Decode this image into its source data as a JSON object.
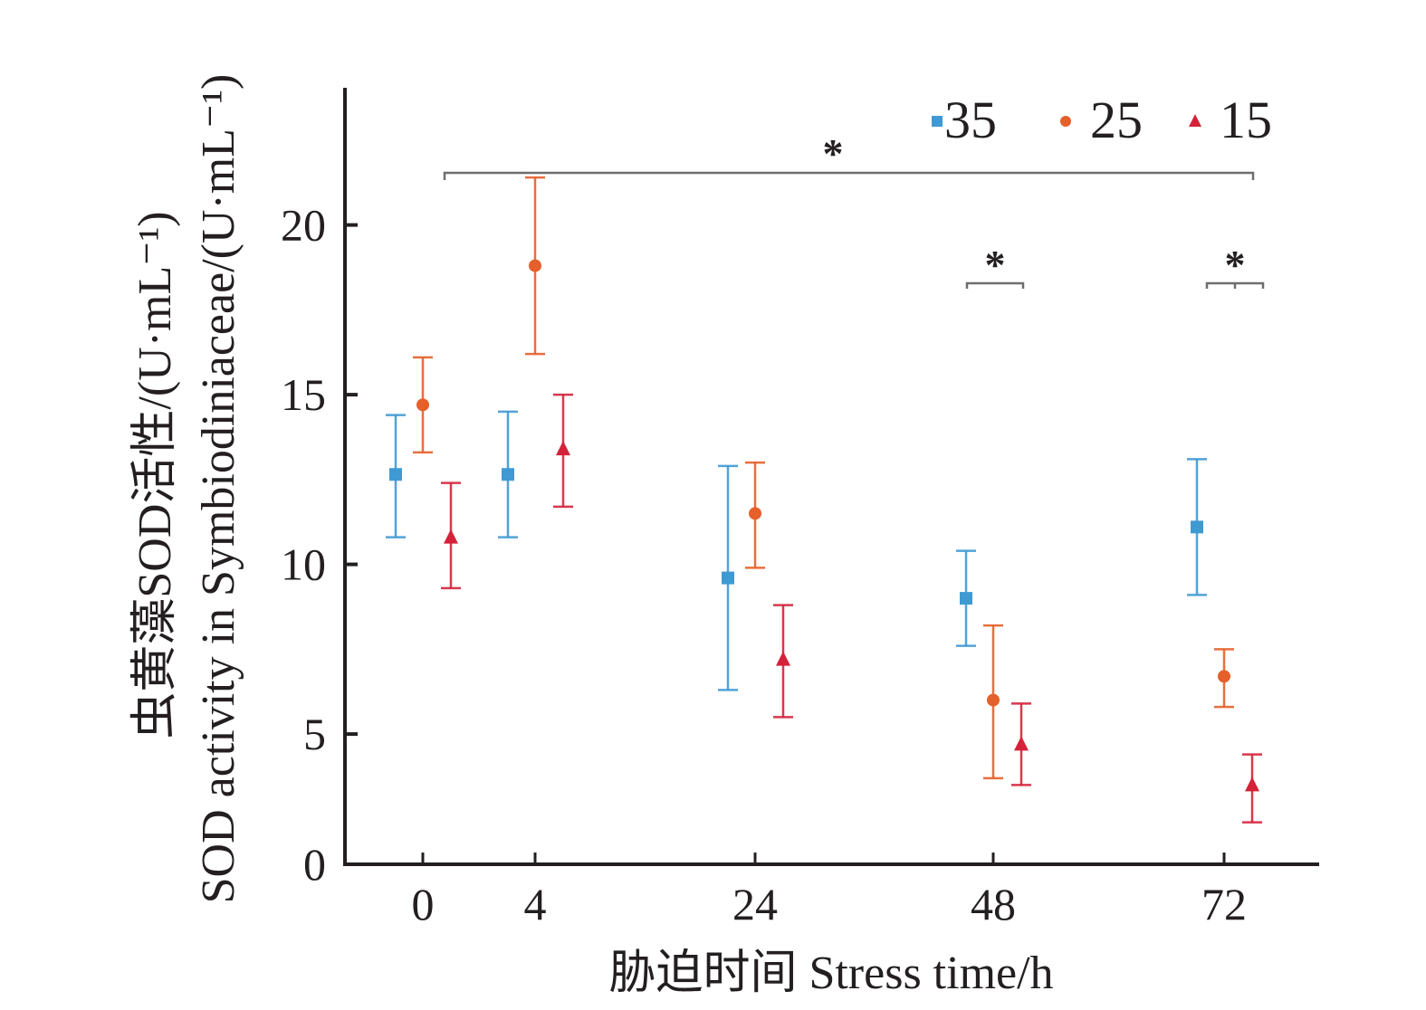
{
  "chart_data": {
    "type": "scatter",
    "subtype": "errorbar",
    "title": "",
    "xlabel": "胁迫时间 Stress time/h",
    "ylabel_line1": "虫黄藻SOD活性/(U·mL⁻¹)",
    "ylabel_line2": "SOD activity in Symbiodiniaceae/(U·mL⁻¹)",
    "categories": [
      "0",
      "4",
      "24",
      "48",
      "72"
    ],
    "y_ticks": [
      "0",
      "5",
      "10",
      "15",
      "20"
    ],
    "ylim": [
      1.1,
      23
    ],
    "grid": false,
    "legend_position": "top-right",
    "series": [
      {
        "name": "35",
        "marker": "square",
        "color": "#3f9ad3",
        "values": [
          12.65,
          12.65,
          9.6,
          9.0,
          11.1
        ],
        "upper": [
          14.4,
          14.5,
          12.9,
          10.4,
          13.1
        ],
        "lower": [
          10.8,
          10.8,
          6.3,
          7.6,
          9.1
        ]
      },
      {
        "name": "25",
        "marker": "circle",
        "color": "#e5602a",
        "values": [
          14.7,
          18.8,
          11.5,
          6.0,
          6.7
        ],
        "upper": [
          16.1,
          21.4,
          13.0,
          8.2,
          7.5
        ],
        "lower": [
          13.3,
          16.2,
          9.9,
          3.7,
          5.8
        ]
      },
      {
        "name": "15",
        "marker": "triangle",
        "color": "#d42339",
        "values": [
          10.8,
          13.4,
          7.2,
          4.7,
          3.5
        ],
        "upper": [
          12.4,
          15.0,
          8.8,
          5.9,
          4.4
        ],
        "lower": [
          9.3,
          11.7,
          5.5,
          3.5,
          2.4
        ]
      }
    ],
    "annotations": [
      {
        "label": "*",
        "type": "bracket",
        "from_category": "0",
        "to_category": "72",
        "level": 21.6
      },
      {
        "label": "*",
        "type": "bracket",
        "from_category": "48",
        "to_category": "48",
        "level": 18.2
      },
      {
        "label": "*",
        "type": "bracket",
        "from_category": "72",
        "to_category": "72",
        "level": 18.2
      }
    ]
  }
}
